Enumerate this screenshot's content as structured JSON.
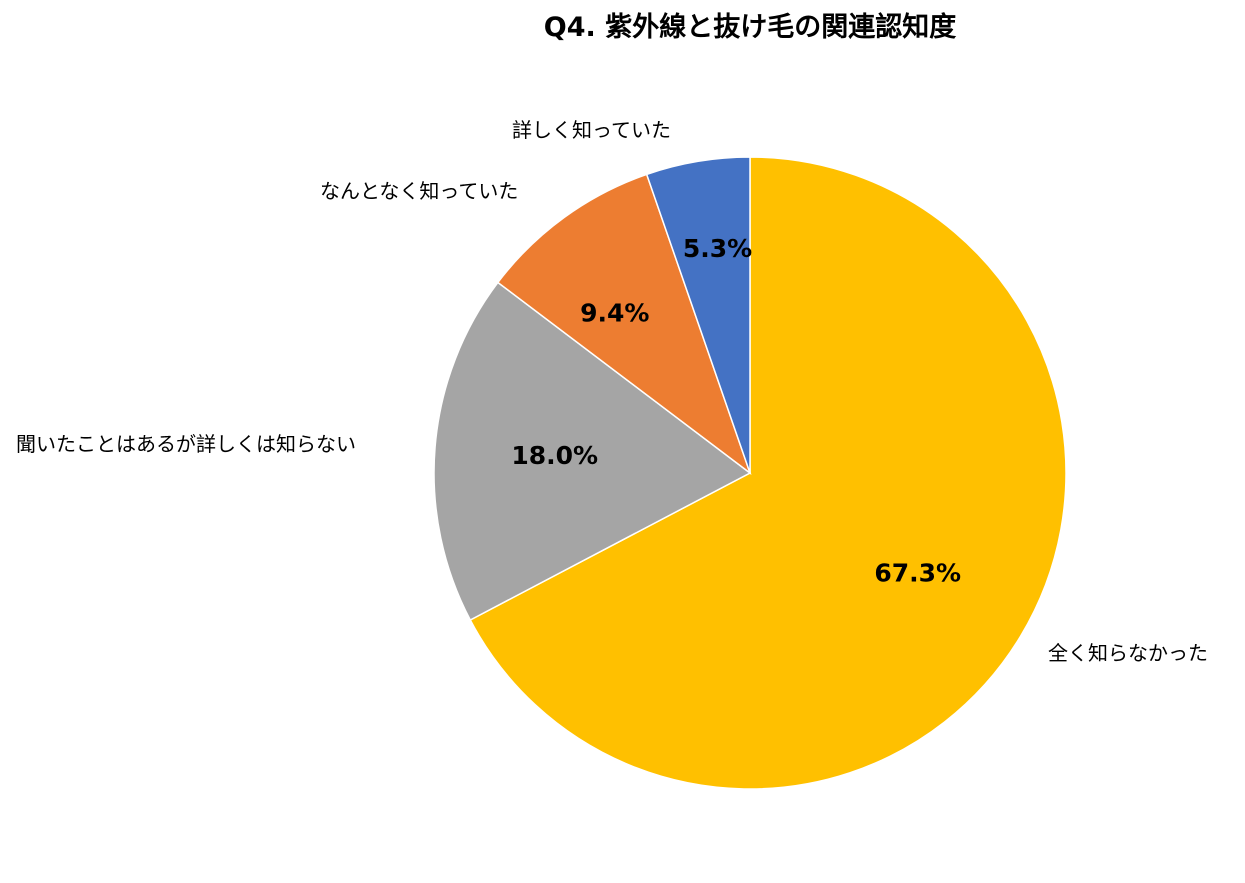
{
  "chart_data": {
    "type": "pie",
    "title": "Q4. 紫外線と抜け毛の関連認知度",
    "start": "12 o'clock, clockwise",
    "slices": [
      {
        "label": "全く知らなかった",
        "value": 67.3,
        "value_label": "67.3%",
        "color": "#FFC000"
      },
      {
        "label": "聞いたことはあるが詳しくは知らない",
        "value": 18.0,
        "value_label": "18.0%",
        "color": "#A5A5A5"
      },
      {
        "label": "なんとなく知っていた",
        "value": 9.4,
        "value_label": "9.4%",
        "color": "#ED7D31"
      },
      {
        "label": "詳しく知っていた",
        "value": 5.3,
        "value_label": "5.3%",
        "color": "#4472C4"
      }
    ]
  }
}
